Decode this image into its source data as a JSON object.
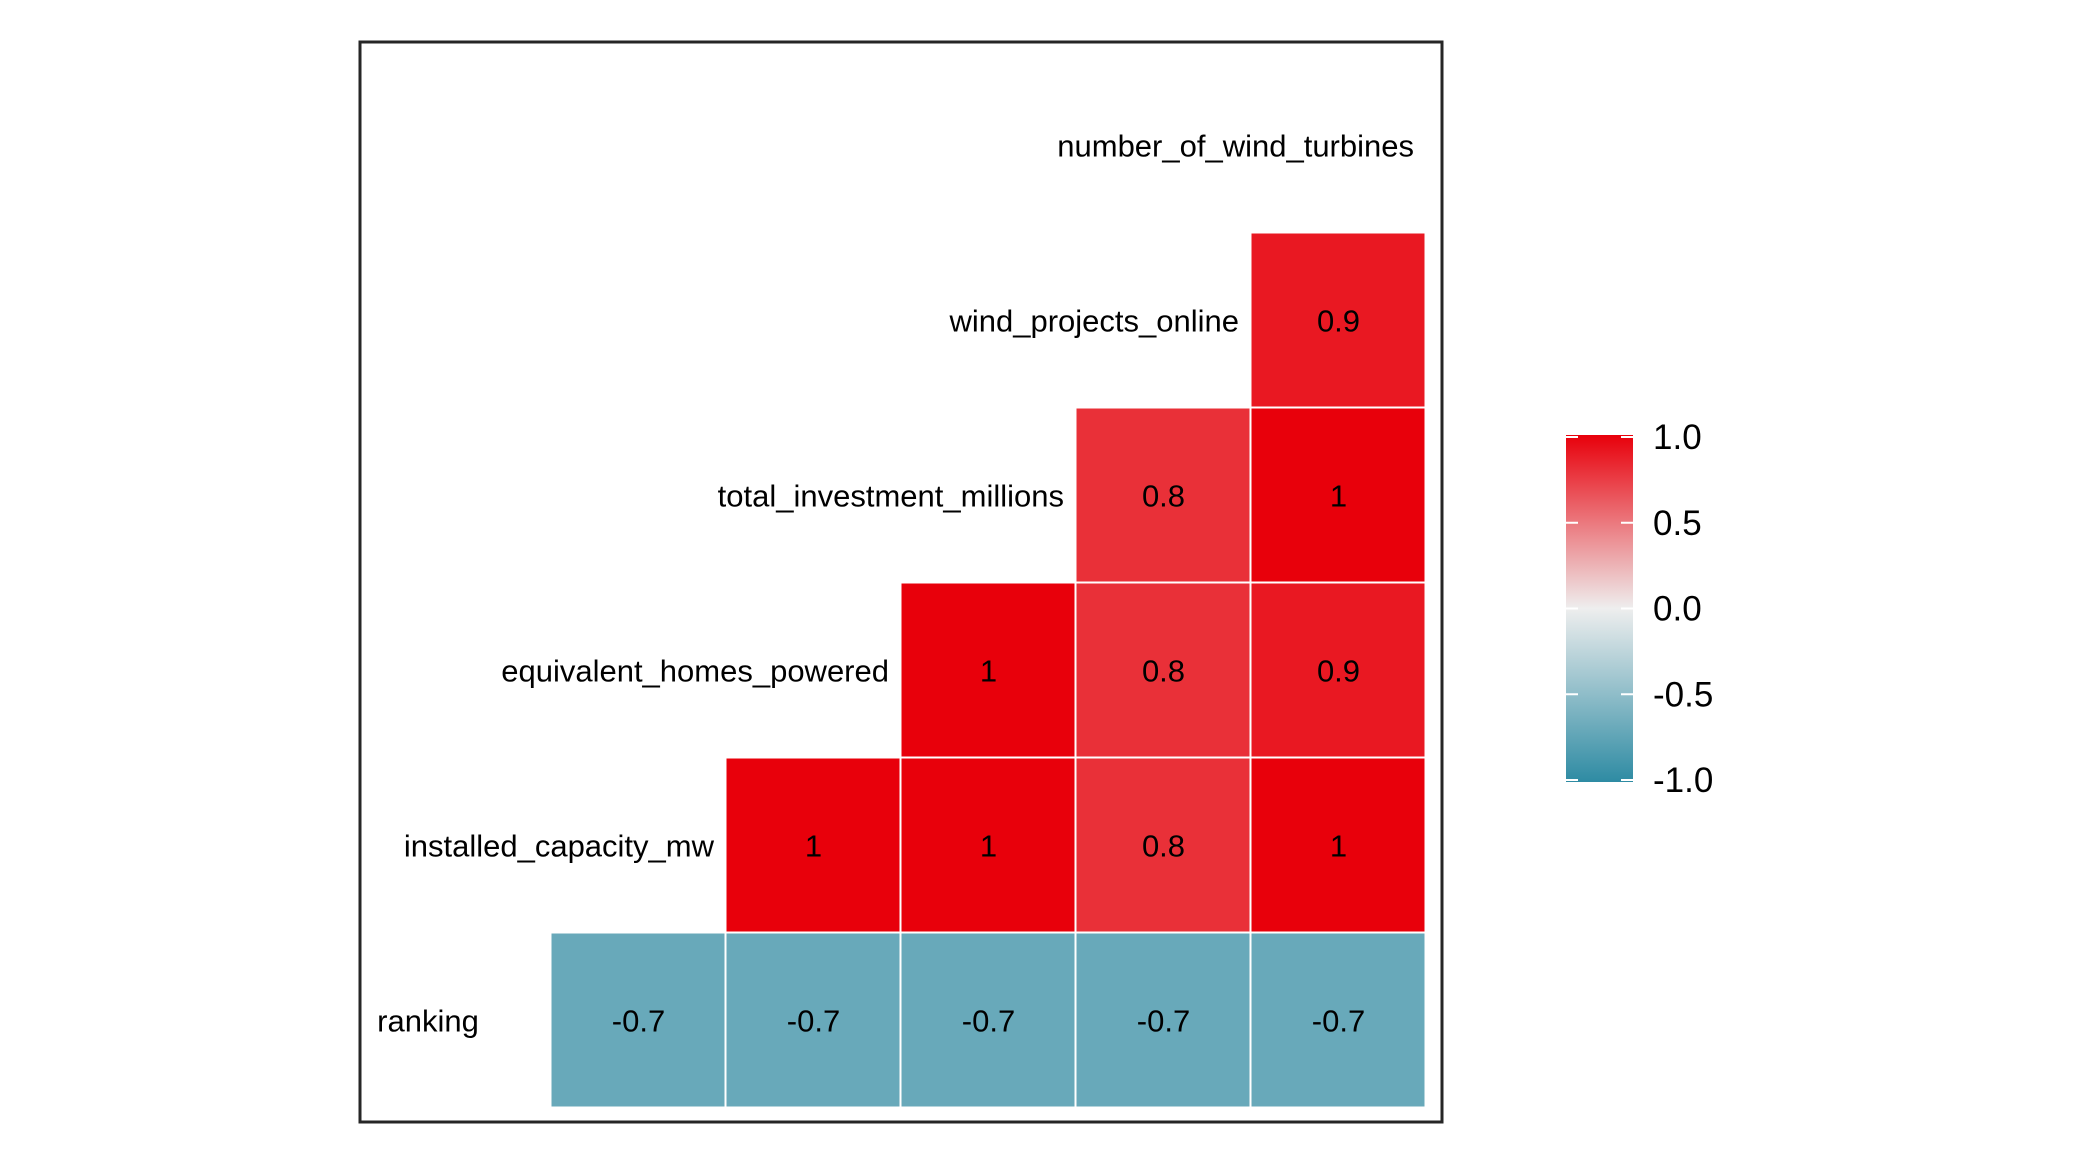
{
  "chart_data": {
    "type": "heatmap",
    "variables": [
      "number_of_wind_turbines",
      "wind_projects_online",
      "total_investment_millions",
      "equivalent_homes_powered",
      "installed_capacity_mw",
      "ranking"
    ],
    "cells": [
      {
        "row": "wind_projects_online",
        "col": "number_of_wind_turbines",
        "value": 0.9
      },
      {
        "row": "total_investment_millions",
        "col": "wind_projects_online",
        "value": 0.8
      },
      {
        "row": "total_investment_millions",
        "col": "number_of_wind_turbines",
        "value": 1
      },
      {
        "row": "equivalent_homes_powered",
        "col": "total_investment_millions",
        "value": 1
      },
      {
        "row": "equivalent_homes_powered",
        "col": "wind_projects_online",
        "value": 0.8
      },
      {
        "row": "equivalent_homes_powered",
        "col": "number_of_wind_turbines",
        "value": 0.9
      },
      {
        "row": "installed_capacity_mw",
        "col": "equivalent_homes_powered",
        "value": 1
      },
      {
        "row": "installed_capacity_mw",
        "col": "total_investment_millions",
        "value": 1
      },
      {
        "row": "installed_capacity_mw",
        "col": "wind_projects_online",
        "value": 0.8
      },
      {
        "row": "installed_capacity_mw",
        "col": "number_of_wind_turbines",
        "value": 1
      },
      {
        "row": "ranking",
        "col": "installed_capacity_mw",
        "value": -0.7
      },
      {
        "row": "ranking",
        "col": "equivalent_homes_powered",
        "value": -0.7
      },
      {
        "row": "ranking",
        "col": "total_investment_millions",
        "value": -0.7
      },
      {
        "row": "ranking",
        "col": "wind_projects_online",
        "value": -0.7
      },
      {
        "row": "ranking",
        "col": "number_of_wind_turbines",
        "value": -0.7
      }
    ],
    "value_range": [
      -1,
      1
    ],
    "legend": {
      "position": "right",
      "ticks": [
        "1.0",
        "0.5",
        "0.0",
        "-0.5",
        "-1.0"
      ],
      "tick_values": [
        1,
        0.5,
        0,
        -0.5,
        -1
      ]
    },
    "colors": {
      "low": "#2e8ba3",
      "mid": "#eeeeee",
      "high": "#e8000b",
      "border": "#262626"
    },
    "grid": false
  }
}
